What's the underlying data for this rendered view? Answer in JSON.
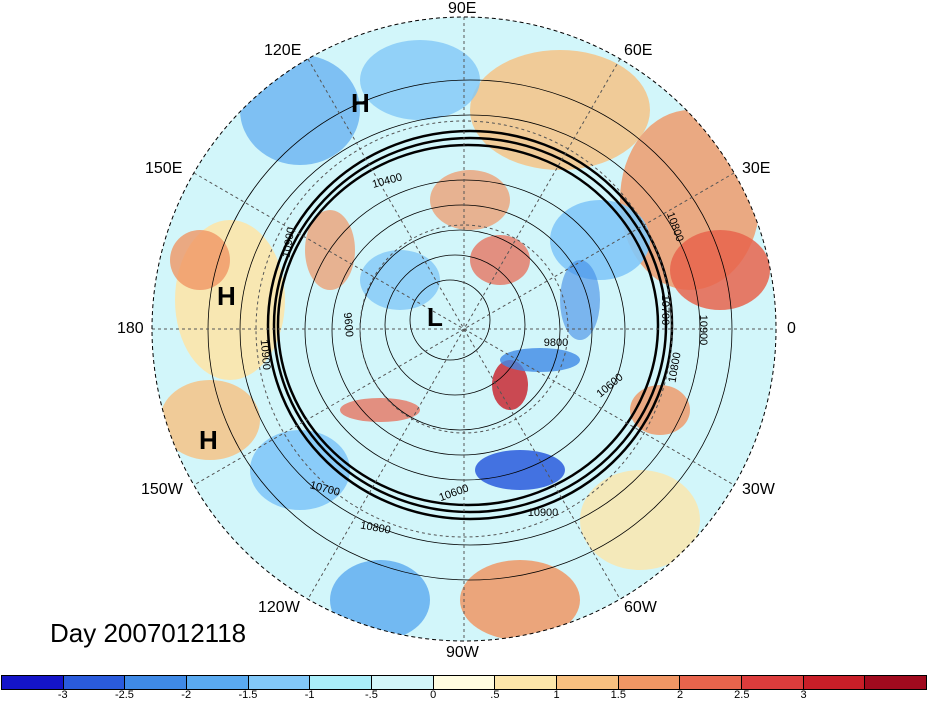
{
  "map": {
    "projection": "north polar stereographic",
    "longitude_labels": {
      "lon_90E": "90E",
      "lon_60E": "60E",
      "lon_30E": "30E",
      "lon_0": "0",
      "lon_30W": "30W",
      "lon_60W": "60W",
      "lon_90W": "90W",
      "lon_120W": "120W",
      "lon_150W": "150W",
      "lon_180": "180",
      "lon_150E": "150E",
      "lon_120E": "120E"
    },
    "pressure_centers": [
      {
        "id": "high-north",
        "label": "H"
      },
      {
        "id": "high-west",
        "label": "H"
      },
      {
        "id": "high-southwest",
        "label": "H"
      },
      {
        "id": "low-pole",
        "label": "L"
      }
    ],
    "contour_labels": [
      "10900",
      "10400",
      "10800",
      "10900",
      "9600",
      "10700",
      "10900",
      "9800",
      "10600",
      "10800",
      "10700",
      "10600",
      "10900",
      "10800"
    ],
    "contour_levels_m": [
      9600,
      9800,
      10000,
      10200,
      10400,
      10600,
      10700,
      10800,
      10900
    ],
    "day_label": "Day 2007012118"
  },
  "colorbar": {
    "colors": [
      "#1414c8",
      "#2a5bdc",
      "#3f8ae6",
      "#5aaaf0",
      "#82c8f8",
      "#aaeefa",
      "#d2f6fa",
      "#fffce0",
      "#fce6aa",
      "#f8c080",
      "#f09664",
      "#e8644c",
      "#dc3c3c",
      "#c81e28",
      "#a00a1e"
    ],
    "ticks": [
      "-3",
      "-2.5",
      "-2",
      "-1.5",
      "-1",
      "-.5",
      "0",
      ".5",
      "1",
      "1.5",
      "2",
      "2.5",
      "3"
    ]
  }
}
